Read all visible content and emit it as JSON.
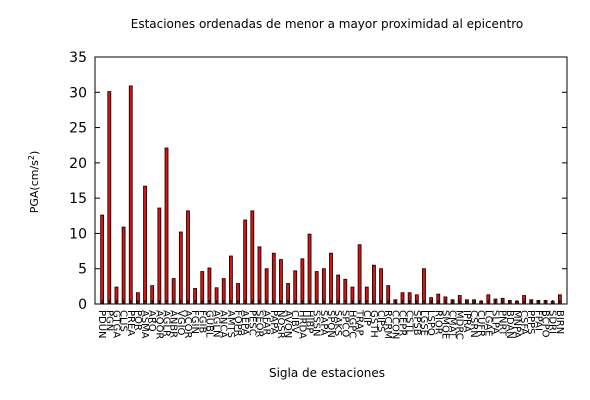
{
  "chart_data": {
    "type": "bar",
    "title": "Estaciones ordenadas de menor a mayor proximidad al epicentro",
    "xlabel": "Sigla de estaciones",
    "ylabel_main": "PGA(cm/s",
    "ylabel_sup": "2",
    "ylabel_close": ")",
    "ylim": [
      0,
      35
    ],
    "yticks": [
      0,
      5,
      10,
      15,
      20,
      25,
      30,
      35
    ],
    "grid": false,
    "bar_color": "#e01010",
    "categories": [
      "PDUN",
      "PGN",
      "GTGA",
      "CLIS",
      "PREA",
      "POR",
      "ASMA",
      "ARQ",
      "AQOR",
      "AGLR",
      "ANBR",
      "VGIO",
      "ACOR",
      "FGIN",
      "FGIB",
      "GUBL",
      "AGLN",
      "ANCA",
      "AMTS",
      "FOPR",
      "AEPA",
      "PESC",
      "SEOR",
      "AFAR",
      "PAPA",
      "NOSR",
      "AVON",
      "CIBV",
      "HRDA",
      "HIBP",
      "SSSN",
      "SAPA",
      "SPON",
      "SAKS",
      "SPCO",
      "HGPC",
      "TRAP",
      "CIP",
      "GSTH",
      "CIPS",
      "RCRM",
      "CCON",
      "CEPR",
      "CSTL",
      "SPSB",
      "LGSE",
      "LSPO",
      "RIOR",
      "SMOE",
      "CMAT",
      "MDRC",
      "IPRA",
      "CSRN",
      "CUFR",
      "LGAE",
      "SLPA",
      "PNRT",
      "BDAN",
      "MNPA",
      "CSFA",
      "PPPS",
      "FPAI",
      "BCPO",
      "SDRI",
      "BIRN"
    ],
    "values": [
      12.6,
      30.1,
      2.4,
      10.9,
      30.9,
      1.6,
      16.7,
      2.6,
      13.6,
      22.1,
      3.6,
      10.2,
      13.2,
      2.2,
      4.6,
      5.1,
      2.3,
      3.6,
      6.8,
      2.9,
      11.9,
      13.2,
      8.1,
      5.0,
      7.2,
      6.3,
      2.9,
      4.7,
      6.4,
      9.9,
      4.6,
      5.0,
      7.2,
      4.1,
      3.5,
      2.4,
      8.4,
      2.4,
      5.5,
      5.0,
      2.6,
      0.6,
      1.6,
      1.6,
      1.3,
      5.0,
      0.9,
      1.4,
      1.0,
      0.6,
      1.2,
      0.6,
      0.6,
      0.4,
      1.3,
      0.7,
      0.8,
      0.5,
      0.4,
      1.2,
      0.6,
      0.5,
      0.5,
      0.4,
      1.3
    ]
  }
}
